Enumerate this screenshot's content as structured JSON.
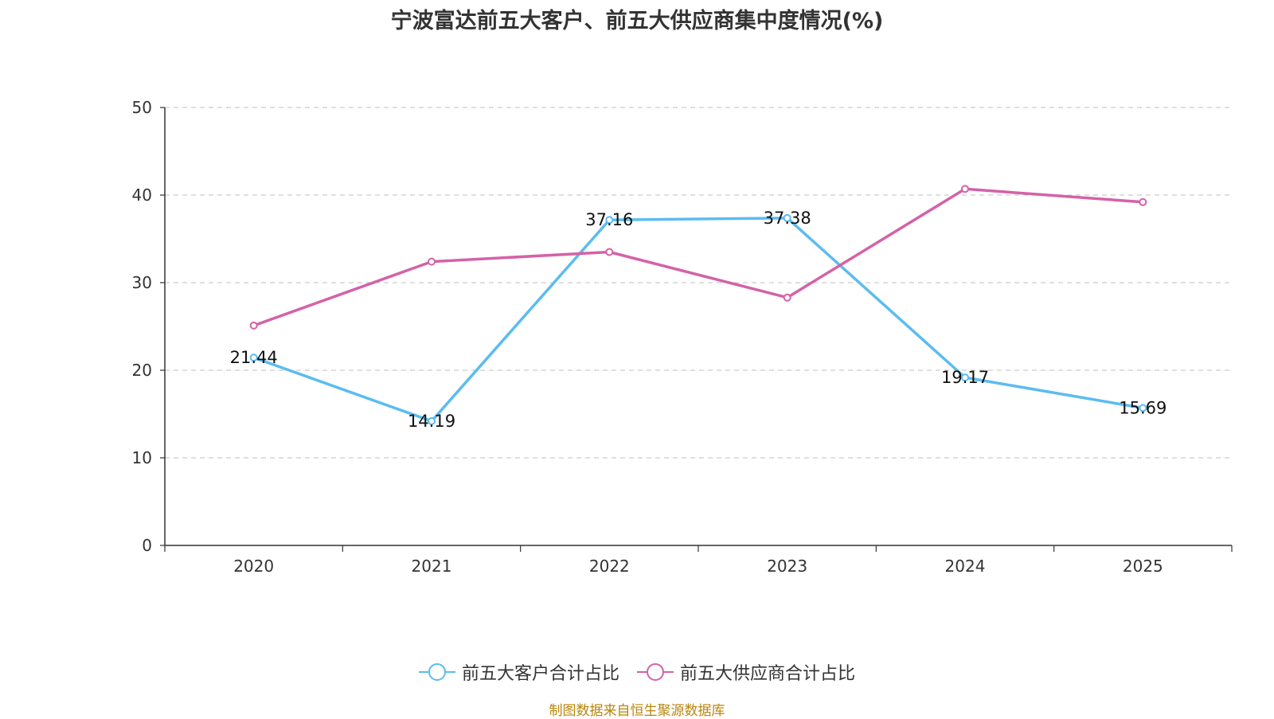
{
  "chart_data": {
    "type": "line",
    "title": "宁波富达前五大客户、前五大供应商集中度情况(%)",
    "categories": [
      "2020",
      "2021",
      "2022",
      "2023",
      "2024",
      "2025"
    ],
    "ylim": [
      0,
      50
    ],
    "yticks": [
      0,
      10,
      20,
      30,
      40,
      50
    ],
    "grid": true,
    "legend_position": "bottom",
    "series": [
      {
        "name": "前五大客户合计占比",
        "values": [
          21.44,
          14.19,
          37.16,
          37.38,
          19.17,
          15.69
        ],
        "labels": [
          "21.44",
          "14.19",
          "37.16",
          "37.38",
          "19.17",
          "15.69"
        ],
        "color": "#5bbcf0"
      },
      {
        "name": "前五大供应商合计占比",
        "values": [
          25.1,
          32.4,
          33.5,
          28.3,
          40.7,
          39.2
        ],
        "color": "#d462a8"
      }
    ]
  },
  "source": "制图数据来自恒生聚源数据库"
}
